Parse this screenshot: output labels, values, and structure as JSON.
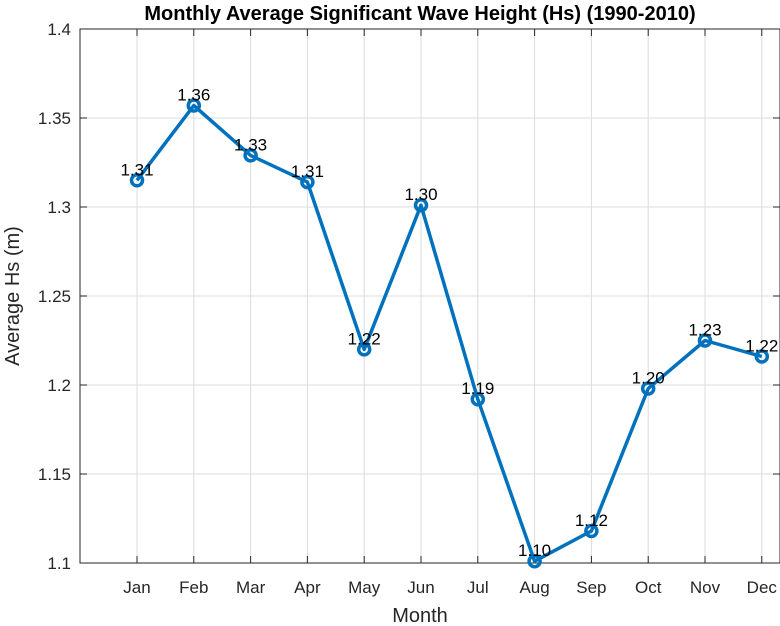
{
  "chart_data": {
    "type": "line",
    "title": "Monthly Average Significant Wave Height (Hs) (1990-2010)",
    "xlabel": "Month",
    "ylabel": "Average Hs (m)",
    "categories": [
      "Jan",
      "Feb",
      "Mar",
      "Apr",
      "May",
      "Jun",
      "Jul",
      "Aug",
      "Sep",
      "Oct",
      "Nov",
      "Dec"
    ],
    "values": [
      1.315,
      1.357,
      1.329,
      1.314,
      1.22,
      1.301,
      1.192,
      1.101,
      1.118,
      1.198,
      1.225,
      1.216
    ],
    "data_labels": [
      "1.31",
      "1.36",
      "1.33",
      "1.31",
      "1.22",
      "1.30",
      "1.19",
      "1.10",
      "1.12",
      "1.20",
      "1.23",
      "1.22"
    ],
    "ylim": [
      1.1,
      1.4
    ],
    "yticks": [
      "1.1",
      "1.15",
      "1.2",
      "1.25",
      "1.3",
      "1.35",
      "1.4"
    ],
    "ytick_values": [
      1.1,
      1.15,
      1.2,
      1.25,
      1.3,
      1.35,
      1.4
    ],
    "grid": true,
    "color": "#0072BD",
    "marker": "circle"
  }
}
